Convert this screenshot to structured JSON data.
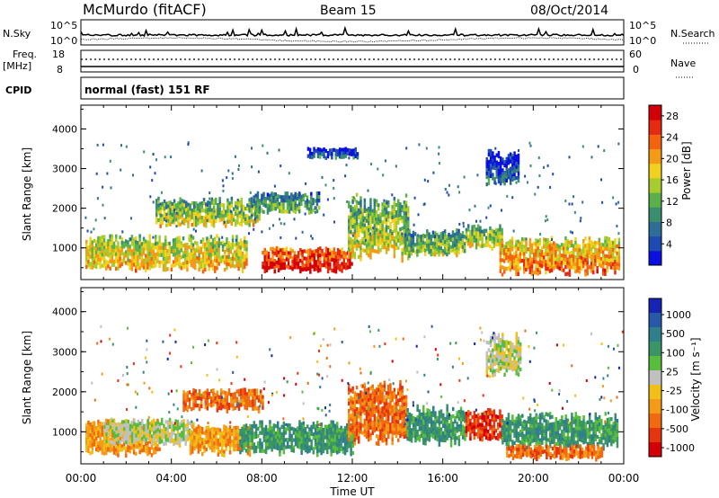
{
  "header": {
    "station": "McMurdo (fitACF)",
    "beam": "Beam 15",
    "date": "08/Oct/2014"
  },
  "left_labels": {
    "nsky": "N.Sky",
    "freq": "Freq.",
    "freq_unit": "[MHz]",
    "freq_top": "18",
    "freq_bot": "8",
    "cpid": "CPID",
    "nsky_top": "10^5",
    "nsky_bot": "10^0"
  },
  "right_labels": {
    "nsearch": "N.Search",
    "nave": "Nave",
    "nsearch_top": "10^5",
    "nsearch_bot": "10^0",
    "nave_top": "60",
    "nave_bot": "0"
  },
  "cpid_text": "normal (fast) 151 RF",
  "colors": {
    "power_scale": [
      "#0a10e0",
      "#1e4ab4",
      "#2e6e96",
      "#3a8e6e",
      "#5ab04a",
      "#a8cc2e",
      "#f0d21e",
      "#f49a16",
      "#f46410",
      "#e42a10",
      "#d40008"
    ],
    "velocity_scale": [
      "#1424b4",
      "#2858a8",
      "#30808c",
      "#3a9464",
      "#58bc3c",
      "#c0c0c0",
      "#f0c018",
      "#f49a16",
      "#f06a10",
      "#e43410",
      "#d40008"
    ]
  },
  "chart_data": [
    {
      "type": "heatmap",
      "title": "",
      "xlabel": "",
      "ylabel": "Slant Range [km]",
      "xlim": [
        0,
        24
      ],
      "ylim": [
        200,
        4600
      ],
      "x_ticks": [
        "00:00",
        "04:00",
        "08:00",
        "12:00",
        "16:00",
        "20:00",
        "00:00"
      ],
      "y_ticks": [
        "1000",
        "2000",
        "3000",
        "4000"
      ],
      "colorbar": {
        "label": "Power [dB]",
        "ticks": [
          "4",
          "8",
          "12",
          "16",
          "20",
          "24",
          "28"
        ],
        "range": [
          0,
          30
        ]
      },
      "features": [
        {
          "t0": 0.2,
          "t1": 7.3,
          "r0": 430,
          "r1": 1350,
          "value": 17
        },
        {
          "t0": 8.0,
          "t1": 12.0,
          "r0": 430,
          "r1": 1050,
          "value": 26
        },
        {
          "t0": 11.8,
          "t1": 14.5,
          "r0": 700,
          "r1": 2400,
          "value": 14
        },
        {
          "t0": 14.3,
          "t1": 17.0,
          "r0": 800,
          "r1": 1500,
          "value": 12
        },
        {
          "t0": 17.0,
          "t1": 18.6,
          "r0": 1000,
          "r1": 1600,
          "value": 14
        },
        {
          "t0": 18.5,
          "t1": 23.8,
          "r0": 350,
          "r1": 1300,
          "value": 20
        },
        {
          "t0": 3.3,
          "t1": 7.9,
          "r0": 1550,
          "r1": 2300,
          "value": 14
        },
        {
          "t0": 7.6,
          "t1": 10.5,
          "r0": 1900,
          "r1": 2450,
          "value": 10
        },
        {
          "t0": 17.9,
          "t1": 19.3,
          "r0": 2600,
          "r1": 3500,
          "value": 4
        },
        {
          "t0": 10.0,
          "t1": 12.2,
          "r0": 3300,
          "r1": 3550,
          "value": 4
        }
      ]
    },
    {
      "type": "heatmap",
      "title": "",
      "xlabel": "Time UT",
      "ylabel": "Slant Range [km]",
      "xlim": [
        0,
        24
      ],
      "ylim": [
        200,
        4600
      ],
      "x_ticks": [
        "00:00",
        "04:00",
        "08:00",
        "12:00",
        "16:00",
        "20:00",
        "00:00"
      ],
      "y_ticks": [
        "1000",
        "2000",
        "3000",
        "4000"
      ],
      "colorbar": {
        "label": "Velocity [m s⁻¹]",
        "ticks": [
          "1000",
          "500",
          "100",
          "25",
          "-25",
          "-100",
          "-500",
          "-1000"
        ]
      },
      "features": [
        {
          "t0": 0.2,
          "t1": 3.5,
          "r0": 430,
          "r1": 1350,
          "value": "-100"
        },
        {
          "t0": 1.0,
          "t1": 5.0,
          "r0": 700,
          "r1": 1350,
          "value": "0"
        },
        {
          "t0": 4.8,
          "t1": 7.5,
          "r0": 450,
          "r1": 1200,
          "value": "-100"
        },
        {
          "t0": 7.0,
          "t1": 12.0,
          "r0": 450,
          "r1": 1300,
          "value": "250"
        },
        {
          "t0": 11.8,
          "t1": 14.4,
          "r0": 700,
          "r1": 2300,
          "value": "-300"
        },
        {
          "t0": 14.4,
          "t1": 17.0,
          "r0": 700,
          "r1": 1700,
          "value": "250"
        },
        {
          "t0": 17.0,
          "t1": 18.6,
          "r0": 800,
          "r1": 1600,
          "value": "-600"
        },
        {
          "t0": 18.6,
          "t1": 23.7,
          "r0": 600,
          "r1": 1500,
          "value": "250"
        },
        {
          "t0": 18.8,
          "t1": 23.0,
          "r0": 350,
          "r1": 700,
          "value": "-300"
        },
        {
          "t0": 4.5,
          "t1": 8.0,
          "r0": 1550,
          "r1": 2100,
          "value": "-250"
        },
        {
          "t0": 17.9,
          "t1": 19.4,
          "r0": 2400,
          "r1": 3500,
          "value": "0"
        }
      ]
    }
  ]
}
